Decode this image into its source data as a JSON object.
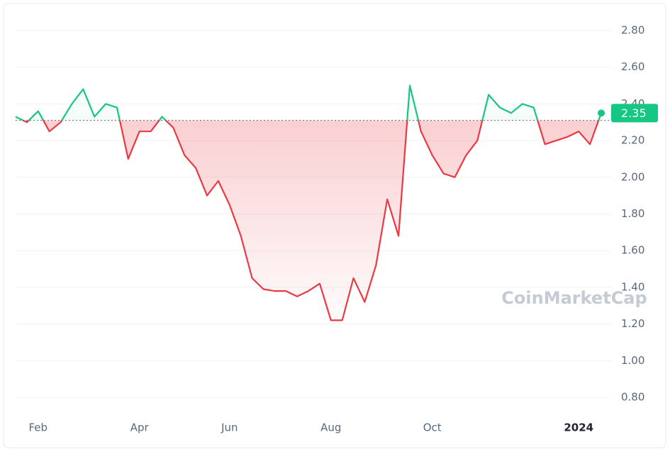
{
  "chart_data": {
    "type": "line",
    "categories": [
      null,
      null,
      "Feb",
      null,
      null,
      null,
      null,
      null,
      null,
      null,
      null,
      "Apr",
      null,
      null,
      null,
      null,
      null,
      null,
      null,
      "Jun",
      null,
      null,
      null,
      null,
      null,
      null,
      null,
      null,
      "Aug",
      null,
      null,
      null,
      null,
      null,
      null,
      null,
      null,
      "Oct",
      null,
      null,
      null,
      null,
      null,
      null,
      null,
      null,
      null,
      null,
      null,
      null,
      "2024",
      null,
      null
    ],
    "series": [
      {
        "values": [
          2.33,
          2.3,
          2.36,
          2.25,
          2.3,
          2.4,
          2.48,
          2.33,
          2.4,
          2.38,
          2.1,
          2.25,
          2.25,
          2.33,
          2.27,
          2.12,
          2.05,
          1.9,
          1.98,
          1.85,
          1.68,
          1.45,
          1.39,
          1.38,
          1.38,
          1.35,
          1.38,
          1.42,
          1.22,
          1.22,
          1.45,
          1.32,
          1.52,
          1.88,
          1.68,
          2.5,
          2.25,
          2.12,
          2.02,
          2.0,
          2.12,
          2.2,
          2.45,
          2.38,
          2.35,
          2.4,
          2.38,
          2.18,
          2.2,
          2.22,
          2.25,
          2.18,
          2.35
        ]
      }
    ],
    "last_value_label": "2.35",
    "baseline": 2.31,
    "up_color": "#16c784",
    "down_color": "#ea3943",
    "ylim": [
      0.7,
      2.9
    ],
    "yticks": [
      {
        "value": 0.8,
        "label": "0.80"
      },
      {
        "value": 1.0,
        "label": "1.00"
      },
      {
        "value": 1.2,
        "label": "1.20"
      },
      {
        "value": 1.4,
        "label": "1.40"
      },
      {
        "value": 1.6,
        "label": "1.60"
      },
      {
        "value": 1.8,
        "label": "1.80"
      },
      {
        "value": 2.0,
        "label": "2.00"
      },
      {
        "value": 2.2,
        "label": "2.20"
      },
      {
        "value": 2.4,
        "label": "2.40"
      },
      {
        "value": 2.6,
        "label": "2.60"
      },
      {
        "value": 2.8,
        "label": "2.80"
      }
    ],
    "grid": true,
    "watermark": "CoinMarketCap"
  }
}
